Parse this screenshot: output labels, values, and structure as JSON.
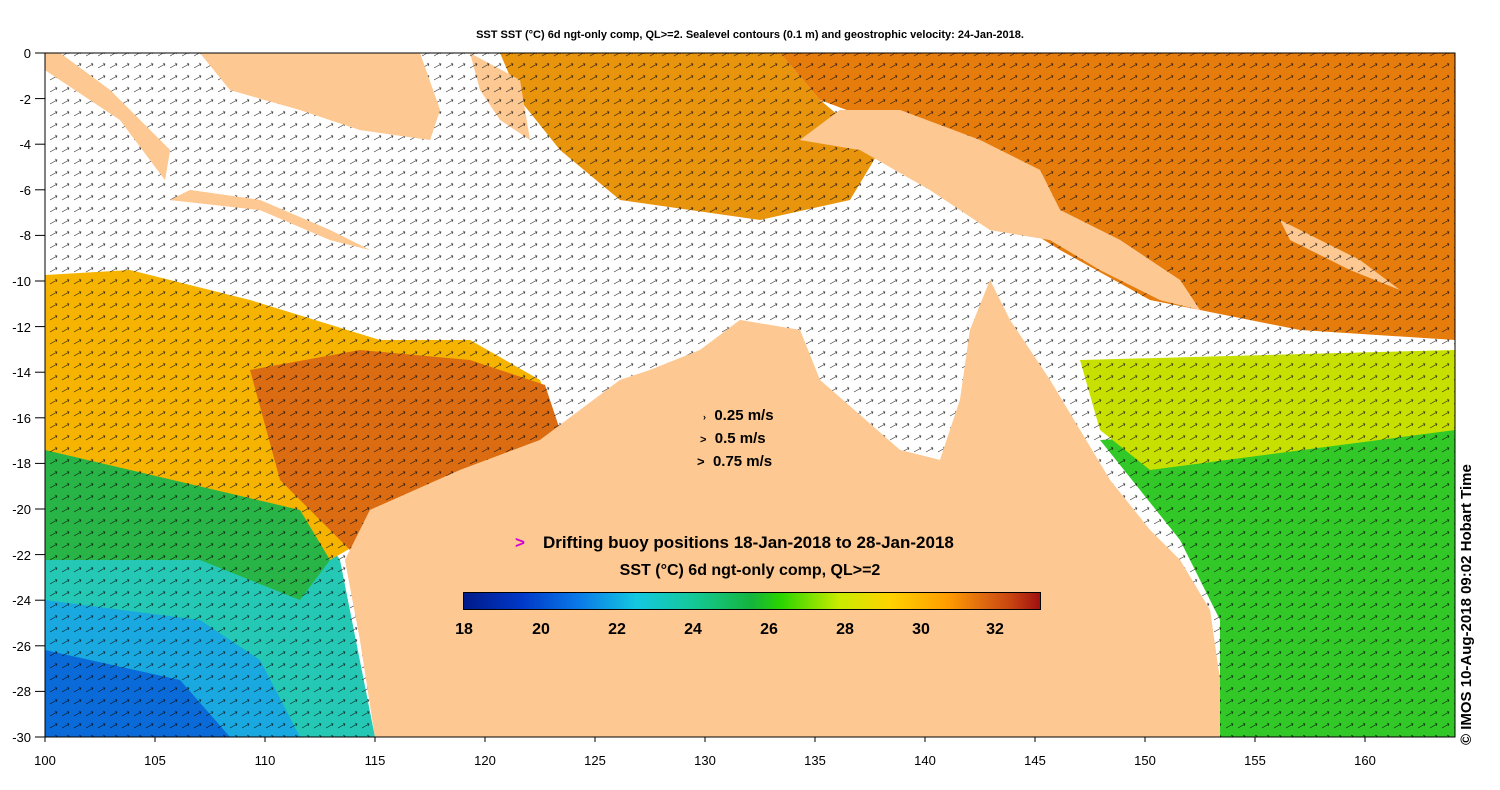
{
  "title": "SST SST (°C) 6d ngt-only comp, QL>=2. Sealevel contours (0.1 m) and geostrophic velocity: 24-Jan-2018.",
  "credit": "© IMOS 10-Aug-2018 09:02 Hobart Time",
  "axes": {
    "x_ticks": [
      "100",
      "105",
      "110",
      "115",
      "120",
      "125",
      "130",
      "135",
      "140",
      "145",
      "150",
      "155",
      "160"
    ],
    "y_ticks": [
      "0",
      "-2",
      "-4",
      "-6",
      "-8",
      "-10",
      "-12",
      "-14",
      "-16",
      "-18",
      "-20",
      "-22",
      "-24",
      "-26",
      "-28",
      "-30"
    ]
  },
  "velocity_legend": [
    "0.25 m/s",
    "0.5 m/s",
    "0.75 m/s"
  ],
  "buoy_legend": {
    "symbol": ">",
    "text": "Drifting buoy positions 18-Jan-2018 to 28-Jan-2018"
  },
  "colorbar": {
    "title": "SST (°C) 6d ngt-only comp, QL>=2",
    "ticks": [
      "18",
      "20",
      "22",
      "24",
      "26",
      "28",
      "30",
      "32"
    ]
  },
  "colors": {
    "land": "#fdc891",
    "buoy_marker": "#d400d4"
  }
}
